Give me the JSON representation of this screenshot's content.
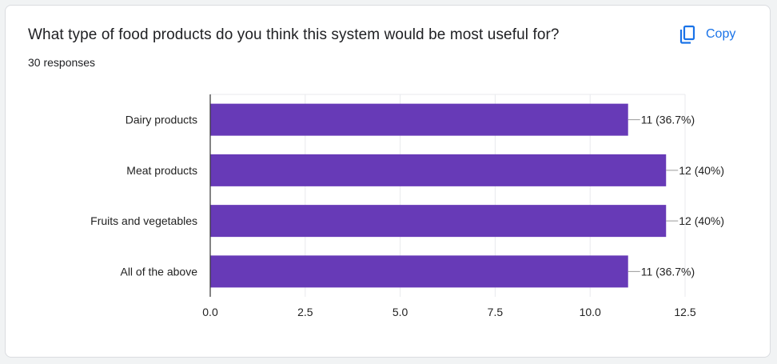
{
  "header": {
    "title": "What type of food products do you think this system would be most useful for?",
    "responses": "30 responses",
    "copy_label": "Copy",
    "copy_icon": "copy-icon"
  },
  "colors": {
    "bar": "#673ab7",
    "accent": "#1a73e8",
    "grid": "#e8eaed",
    "axis": "#333333"
  },
  "chart_data": {
    "type": "bar",
    "orientation": "horizontal",
    "categories": [
      "Dairy products",
      "Meat products",
      "Fruits and vegetables",
      "All of the above"
    ],
    "values": [
      11,
      12,
      12,
      11
    ],
    "data_labels": [
      "11 (36.7%)",
      "12 (40%)",
      "12 (40%)",
      "11 (36.7%)"
    ],
    "xticks": [
      "0.0",
      "2.5",
      "5.0",
      "7.5",
      "10.0",
      "12.5"
    ],
    "xlim": [
      0,
      12.5
    ],
    "grid": true,
    "legend": "none"
  }
}
